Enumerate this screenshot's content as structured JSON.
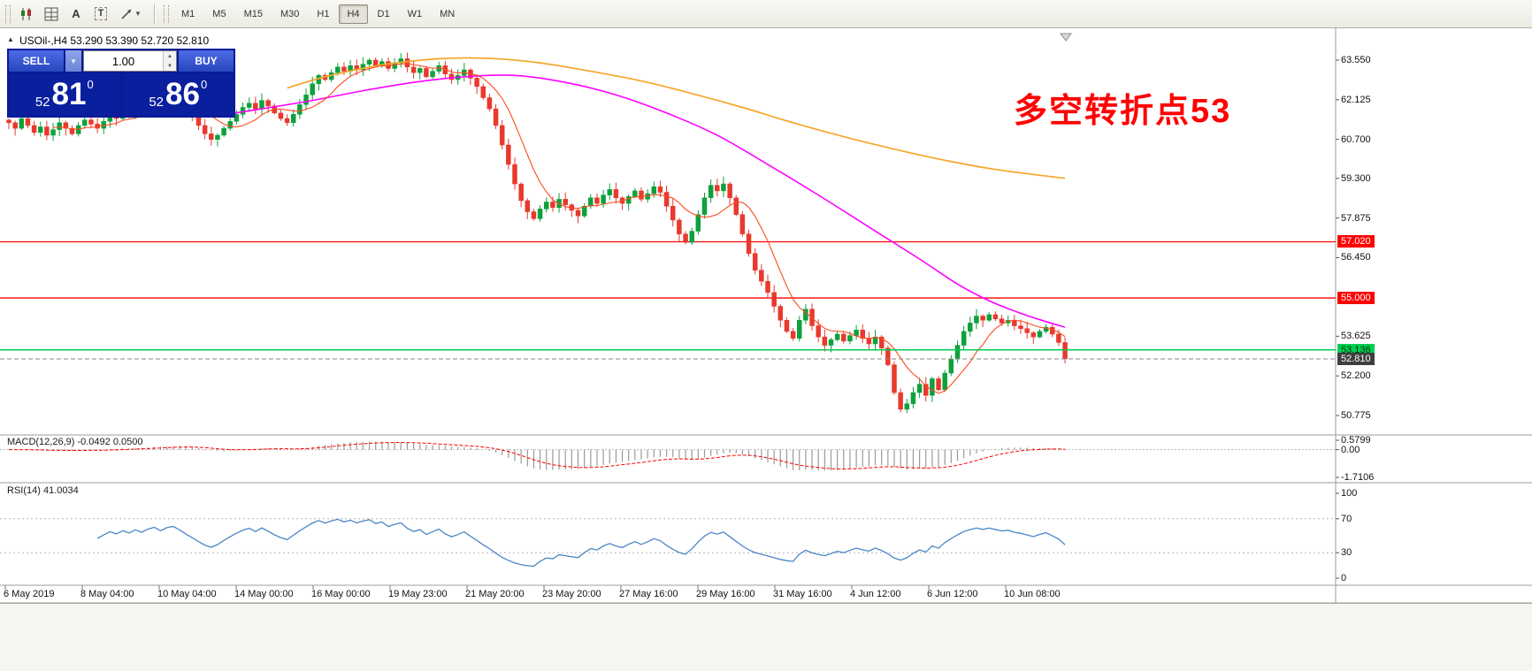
{
  "toolbar": {
    "icons": [
      {
        "name": "candlestick-style-icon"
      },
      {
        "name": "indicator-grid-icon"
      },
      {
        "name": "label-tool-icon",
        "glyph": "A"
      },
      {
        "name": "text-tool-icon",
        "glyph": "T"
      },
      {
        "name": "draw-tools-icon"
      }
    ],
    "timeframes": [
      "M1",
      "M5",
      "M15",
      "M30",
      "H1",
      "H4",
      "D1",
      "W1",
      "MN"
    ],
    "active_timeframe": "H4"
  },
  "chart_header": {
    "collapse_icon": "▲",
    "symbol_info": "USOil-,H4  53.290 53.390 52.720 52.810"
  },
  "trade_panel": {
    "sell_label": "SELL",
    "buy_label": "BUY",
    "volume": "1.00",
    "sell_price_big": "52",
    "sell_price_main": "81",
    "sell_price_sup": "0",
    "buy_price_big": "52",
    "buy_price_main": "86",
    "buy_price_sup": "0"
  },
  "annotation": {
    "text": "多空转折点53",
    "color": "#ff0000"
  },
  "price_axis": {
    "ticks": [
      "63.550",
      "62.125",
      "60.700",
      "59.300",
      "57.875",
      "56.450",
      "53.625",
      "52.200",
      "50.775"
    ],
    "tick_values": [
      63.55,
      62.125,
      60.7,
      59.3,
      57.875,
      56.45,
      53.625,
      52.2,
      50.775
    ]
  },
  "price_tags": [
    {
      "label": "57.020",
      "value": 57.02,
      "bg": "#ff0000",
      "fg": "#ffffff"
    },
    {
      "label": "55.000",
      "value": 55.0,
      "bg": "#ff0000",
      "fg": "#ffffff"
    },
    {
      "label": "53.136",
      "value": 53.136,
      "bg": "#00cf50",
      "fg": "#00330d"
    },
    {
      "label": "52.810",
      "value": 52.81,
      "bg": "#3f3f3f",
      "fg": "#ffffff"
    }
  ],
  "panels": {
    "macd": {
      "label": "MACD(12,26,9) -0.0492 0.0500",
      "axis_labels": [
        "0.5799",
        "0.00",
        "-1.7106"
      ],
      "axis_values": [
        0.5799,
        0,
        -1.7106
      ],
      "max": 0.5799,
      "min": -1.7106
    },
    "rsi": {
      "label": "RSI(14) 41.0034",
      "period": 14,
      "current": 41.0034,
      "axis_values": [
        100,
        70,
        30,
        0
      ],
      "levels": [
        70,
        30
      ]
    }
  },
  "time_axis": {
    "labels": [
      "6 May 2019",
      "8 May 04:00",
      "10 May 04:00",
      "14 May 00:00",
      "16 May 00:00",
      "19 May 23:00",
      "21 May 20:00",
      "23 May 20:00",
      "27 May 16:00",
      "29 May 16:00",
      "31 May 16:00",
      "4 Jun 12:00",
      "6 Jun 12:00",
      "10 Jun 08:00"
    ]
  },
  "chart_data": {
    "type": "candlestick",
    "symbol": "USOil-",
    "timeframe": "H4",
    "current_bar": {
      "open": 53.29,
      "high": 53.39,
      "low": 52.72,
      "close": 52.81
    },
    "ylim": [
      50.2,
      64.4
    ],
    "open_first": 61.4,
    "closes": [
      61.3,
      61.1,
      61.45,
      61.2,
      60.95,
      61.15,
      60.85,
      61.05,
      61.3,
      61.1,
      60.9,
      61.2,
      61.4,
      61.25,
      61.1,
      61.35,
      61.6,
      61.45,
      61.7,
      61.55,
      61.8,
      61.65,
      61.9,
      62.05,
      61.85,
      62.1,
      62.2,
      62.0,
      61.75,
      61.5,
      61.2,
      60.9,
      60.7,
      60.85,
      61.1,
      61.35,
      61.6,
      61.85,
      62.0,
      61.8,
      62.1,
      61.9,
      61.65,
      61.45,
      61.3,
      61.6,
      61.95,
      62.3,
      62.7,
      63.0,
      62.85,
      63.1,
      63.3,
      63.15,
      63.35,
      63.2,
      63.4,
      63.55,
      63.35,
      63.5,
      63.25,
      63.45,
      63.6,
      63.3,
      63.1,
      63.25,
      62.95,
      63.15,
      63.35,
      63.05,
      62.85,
      63.0,
      63.2,
      62.9,
      62.6,
      62.2,
      61.8,
      61.2,
      60.5,
      59.8,
      59.1,
      58.5,
      58.1,
      57.85,
      58.2,
      58.45,
      58.25,
      58.55,
      58.35,
      58.15,
      57.95,
      58.3,
      58.6,
      58.4,
      58.7,
      58.9,
      58.6,
      58.4,
      58.65,
      58.85,
      58.55,
      58.75,
      59.0,
      58.8,
      58.3,
      57.8,
      57.3,
      57.0,
      57.4,
      58.0,
      58.6,
      59.05,
      58.85,
      59.1,
      58.6,
      58.0,
      57.3,
      56.6,
      56.0,
      55.6,
      55.2,
      54.7,
      54.2,
      53.8,
      53.55,
      54.2,
      54.6,
      54.0,
      53.6,
      53.3,
      53.5,
      53.7,
      53.45,
      53.65,
      53.85,
      53.55,
      53.35,
      53.6,
      53.2,
      52.6,
      51.6,
      51.0,
      51.2,
      51.6,
      51.9,
      51.5,
      52.1,
      51.7,
      52.3,
      52.8,
      53.3,
      53.8,
      54.1,
      54.35,
      54.2,
      54.4,
      54.25,
      54.1,
      54.2,
      54.0,
      53.9,
      53.75,
      53.6,
      53.8,
      53.95,
      53.7,
      53.4,
      52.81
    ],
    "hlines": [
      {
        "value": 57.02
      },
      {
        "value": 55.0
      }
    ],
    "bid_line": 53.136,
    "last_line": 52.81,
    "ma_fast_period": 8,
    "ma_mid_points": [
      [
        33,
        61.55
      ],
      [
        40,
        61.8
      ],
      [
        48,
        62.1
      ],
      [
        56,
        62.45
      ],
      [
        64,
        62.75
      ],
      [
        72,
        62.95
      ],
      [
        80,
        63.0
      ],
      [
        88,
        62.75
      ],
      [
        96,
        62.3
      ],
      [
        104,
        61.65
      ],
      [
        112,
        60.85
      ],
      [
        120,
        59.8
      ],
      [
        128,
        58.7
      ],
      [
        136,
        57.55
      ],
      [
        144,
        56.4
      ],
      [
        150,
        55.5
      ],
      [
        155,
        54.9
      ],
      [
        160,
        54.45
      ],
      [
        164,
        54.15
      ],
      [
        167,
        53.95
      ]
    ],
    "ma_slow_points": [
      [
        44,
        62.55
      ],
      [
        50,
        62.95
      ],
      [
        57,
        63.3
      ],
      [
        63,
        63.5
      ],
      [
        70,
        63.62
      ],
      [
        77,
        63.6
      ],
      [
        84,
        63.45
      ],
      [
        92,
        63.15
      ],
      [
        100,
        62.8
      ],
      [
        108,
        62.35
      ],
      [
        116,
        61.85
      ],
      [
        124,
        61.3
      ],
      [
        132,
        60.8
      ],
      [
        140,
        60.35
      ],
      [
        148,
        59.95
      ],
      [
        156,
        59.62
      ],
      [
        167,
        59.3
      ]
    ],
    "colors": {
      "up": "#0ca13c",
      "down": "#e8392c",
      "ma_fast": "#ff4a1f",
      "ma_mid": "#ff00ff",
      "ma_slow": "#f5a62b",
      "macd_hist": "#9a9a9a",
      "macd_signal": "#ff0000",
      "rsi": "#4a86c8",
      "hline": "#ff0000",
      "bid": "#00cf50",
      "last": "#8a8a8a"
    }
  }
}
